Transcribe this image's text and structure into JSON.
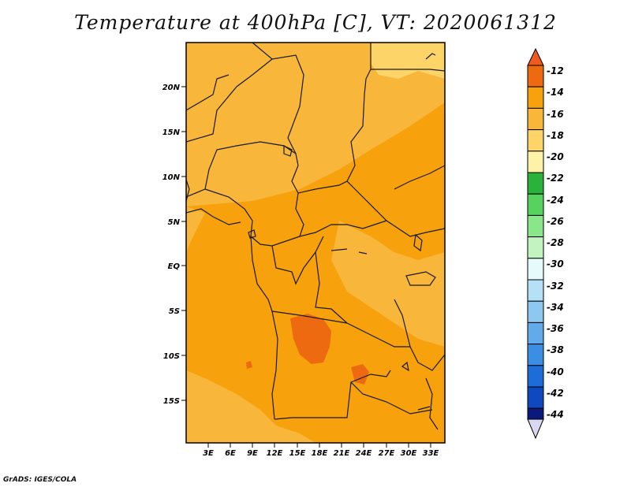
{
  "title": "Temperature at 400hPa [C], VT: 2020061312",
  "credit": "GrADS: IGES/COLA",
  "map": {
    "lat_ticks": [
      "20N",
      "15N",
      "10N",
      "5N",
      "EQ",
      "5S",
      "10S",
      "15S"
    ],
    "lon_ticks": [
      "3E",
      "6E",
      "9E",
      "12E",
      "15E",
      "18E",
      "21E",
      "24E",
      "27E",
      "30E",
      "33E"
    ]
  },
  "colorbar": {
    "labels": [
      "-12",
      "-14",
      "-16",
      "-18",
      "-20",
      "-22",
      "-24",
      "-26",
      "-28",
      "-30",
      "-32",
      "-34",
      "-36",
      "-38",
      "-40",
      "-42",
      "-44"
    ],
    "colors": [
      "#f05a1e",
      "#ee6a10",
      "#f7a10c",
      "#f8b63a",
      "#fcd468",
      "#fef2a8",
      "#2ab23a",
      "#58d25e",
      "#8ae68a",
      "#c2f4c0",
      "#e6fafc",
      "#b6e0f6",
      "#8ec8f0",
      "#62aaea",
      "#3c8ee2",
      "#1e6cd8",
      "#1048c0",
      "#0b1a7a",
      "#d8d8f2"
    ]
  }
}
